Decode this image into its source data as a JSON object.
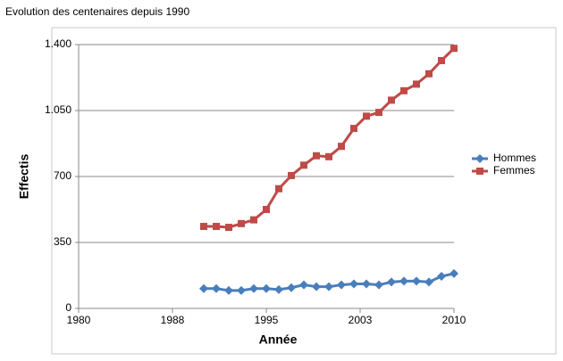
{
  "chart_data": {
    "type": "line",
    "title": "Evolution des centenaires depuis 1990",
    "x_label": "Année",
    "y_label": "Effectis",
    "x": [
      1990,
      1991,
      1992,
      1993,
      1994,
      1995,
      1996,
      1997,
      1998,
      1999,
      2000,
      2001,
      2002,
      2003,
      2004,
      2005,
      2006,
      2007,
      2008,
      2009,
      2010
    ],
    "series": [
      {
        "name": "Hommes",
        "color": "#4a7ebb",
        "marker": "diamond",
        "values": [
          105,
          105,
          95,
          95,
          105,
          105,
          100,
          110,
          125,
          115,
          115,
          125,
          130,
          130,
          125,
          140,
          145,
          145,
          140,
          170,
          185
        ]
      },
      {
        "name": "Femmes",
        "color": "#be4b48",
        "marker": "square",
        "values": [
          435,
          435,
          430,
          450,
          470,
          525,
          635,
          705,
          760,
          810,
          805,
          860,
          955,
          1020,
          1040,
          1105,
          1155,
          1190,
          1245,
          1315,
          1380
        ]
      }
    ],
    "xlim": [
      1980,
      2010
    ],
    "xticks": [
      1980,
      {
        "value": 1987.5,
        "label": "1988"
      },
      1995,
      {
        "value": 2002.5,
        "label": "2003"
      },
      2010
    ],
    "ylim": [
      0,
      1400
    ],
    "yticks": [
      0,
      350,
      700,
      {
        "value": 1050,
        "label": "1.050"
      },
      {
        "value": 1400,
        "label": "1.400"
      }
    ],
    "grid": true,
    "legend": "right"
  }
}
